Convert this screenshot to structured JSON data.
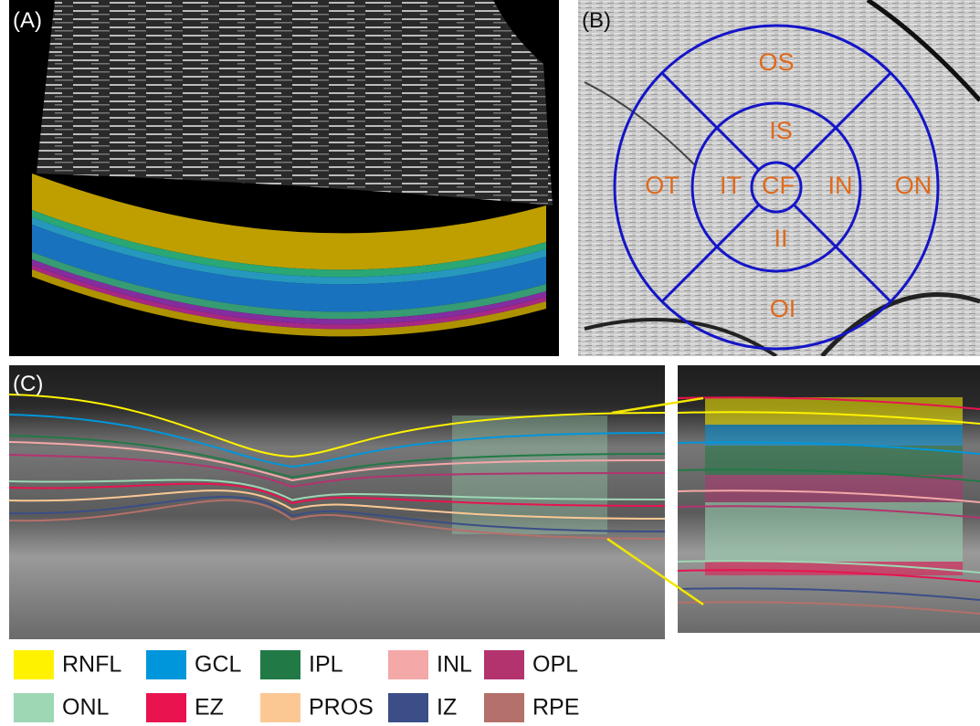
{
  "panels": {
    "a": {
      "label": "(A)"
    },
    "b": {
      "label": "(B)",
      "sectors": [
        "OS",
        "IS",
        "OT",
        "IT",
        "CF",
        "IN",
        "ON",
        "II",
        "OI"
      ]
    },
    "c": {
      "label": "(C)"
    }
  },
  "legend": [
    {
      "name": "RNFL",
      "color": "#fff200"
    },
    {
      "name": "GCL",
      "color": "#0096db"
    },
    {
      "name": "IPL",
      "color": "#217a45"
    },
    {
      "name": "INL",
      "color": "#f4a8a8"
    },
    {
      "name": "OPL",
      "color": "#b3336f"
    },
    {
      "name": "ONL",
      "color": "#9dd7b4"
    },
    {
      "name": "EZ",
      "color": "#e8134f"
    },
    {
      "name": "PROS",
      "color": "#fbc894"
    },
    {
      "name": "IZ",
      "color": "#3b4e87"
    },
    {
      "name": "RPE",
      "color": "#b4706a"
    }
  ]
}
